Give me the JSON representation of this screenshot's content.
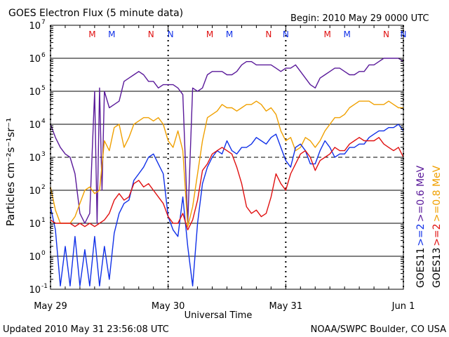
{
  "title": "GOES Electron Flux (5 minute data)",
  "begin_label": "Begin: 2010 May 29 0000 UTC",
  "updated_label": "Updated 2010 May 31 23:56:08 UTC",
  "credit": "NOAA/SWPC Boulder, CO USA",
  "colors": {
    "purple": "#5a1a9a",
    "orange": "#f0a000",
    "blue": "#1030e8",
    "red": "#e01010",
    "axis": "#000000",
    "marker_red": "#e01010",
    "marker_blue": "#1030e8"
  },
  "chart_data": {
    "type": "line",
    "title": "GOES Electron Flux (5 minute data)",
    "xlabel": "Universal Time",
    "ylabel": "Particles cm⁻²s⁻¹sr⁻¹",
    "xlim": [
      0,
      72
    ],
    "ylim_log10": [
      -1,
      7
    ],
    "x_ticks": [
      {
        "x": 0,
        "label": "May 29"
      },
      {
        "x": 24,
        "label": "May 30"
      },
      {
        "x": 48,
        "label": "May 31"
      },
      {
        "x": 72,
        "label": "Jun 1"
      }
    ],
    "y_ticks": [
      {
        "exp": 7,
        "label": "7"
      },
      {
        "exp": 6,
        "label": "6"
      },
      {
        "exp": 5,
        "label": "5"
      },
      {
        "exp": 4,
        "label": "4"
      },
      {
        "exp": 3,
        "label": "3"
      },
      {
        "exp": 2,
        "label": "2"
      },
      {
        "exp": 1,
        "label": "1"
      },
      {
        "exp": 0,
        "label": "0"
      },
      {
        "exp": -1,
        "label": "-1"
      }
    ],
    "threshold_lines_log10": [
      6,
      5,
      4,
      2,
      1,
      0
    ],
    "dashed_threshold_log10": 3,
    "day_markers_x": [
      0,
      24,
      48,
      72
    ],
    "mn_markers": [
      {
        "x": 8.5,
        "label": "M",
        "color": "red"
      },
      {
        "x": 12.5,
        "label": "M",
        "color": "blue"
      },
      {
        "x": 20.5,
        "label": "N",
        "color": "red"
      },
      {
        "x": 24.5,
        "label": "N",
        "color": "blue"
      },
      {
        "x": 32.5,
        "label": "M",
        "color": "red"
      },
      {
        "x": 36.5,
        "label": "M",
        "color": "blue"
      },
      {
        "x": 44.5,
        "label": "N",
        "color": "red"
      },
      {
        "x": 48.0,
        "label": "N",
        "color": "blue"
      },
      {
        "x": 56.5,
        "label": "M",
        "color": "red"
      },
      {
        "x": 60.5,
        "label": "M",
        "color": "blue"
      },
      {
        "x": 68.5,
        "label": "N",
        "color": "red"
      },
      {
        "x": 72.0,
        "label": "N",
        "color": "blue"
      }
    ],
    "right_labels": [
      {
        "text": ">=0.6 MeV",
        "color": "purple",
        "col": 1
      },
      {
        "text": ">=2",
        "color": "blue",
        "col": 1
      },
      {
        "text": "GOES11",
        "color": "axis",
        "col": 1
      },
      {
        "text": ">=0.8 MeV",
        "color": "orange",
        "col": 2
      },
      {
        "text": ">=2",
        "color": "red",
        "col": 2
      },
      {
        "text": "GOES13",
        "color": "axis",
        "col": 2
      }
    ],
    "series": [
      {
        "name": "GOES11 >=0.6 MeV",
        "color": "purple",
        "x": [
          0,
          1,
          2,
          3,
          4,
          5,
          6,
          7,
          8,
          9,
          9.5,
          10,
          10.5,
          11,
          12,
          13,
          14,
          15,
          16,
          17,
          18,
          19,
          20,
          21,
          22,
          23,
          24,
          25,
          26,
          27,
          28,
          29,
          30,
          31,
          32,
          33,
          34,
          35,
          36,
          37,
          38,
          39,
          40,
          41,
          42,
          43,
          44,
          45,
          46,
          47,
          48,
          49,
          50,
          51,
          52,
          53,
          54,
          55,
          56,
          57,
          58,
          59,
          60,
          61,
          62,
          63,
          64,
          65,
          66,
          67,
          68,
          69,
          70,
          71,
          72
        ],
        "log10": [
          4.0,
          3.6,
          3.3,
          3.1,
          3.0,
          2.5,
          1.3,
          1.0,
          1.3,
          5.0,
          1.0,
          5.1,
          2.0,
          5.0,
          4.5,
          4.6,
          4.7,
          5.3,
          5.4,
          5.5,
          5.6,
          5.5,
          5.3,
          5.3,
          5.1,
          5.2,
          5.2,
          5.2,
          5.1,
          4.9,
          1.0,
          5.1,
          5.0,
          5.1,
          5.5,
          5.6,
          5.6,
          5.6,
          5.5,
          5.5,
          5.6,
          5.8,
          5.9,
          5.9,
          5.8,
          5.8,
          5.8,
          5.8,
          5.7,
          5.6,
          5.7,
          5.7,
          5.8,
          5.6,
          5.4,
          5.2,
          5.1,
          5.4,
          5.5,
          5.6,
          5.7,
          5.7,
          5.6,
          5.5,
          5.5,
          5.6,
          5.6,
          5.8,
          5.8,
          5.9,
          6.0,
          6.0,
          6.0,
          6.0,
          5.9
        ]
      },
      {
        "name": "GOES13 >=0.8 MeV",
        "color": "orange",
        "x": [
          0,
          1,
          2,
          3,
          4,
          5,
          6,
          7,
          8,
          9,
          10,
          11,
          12,
          13,
          14,
          15,
          16,
          17,
          18,
          19,
          20,
          21,
          22,
          23,
          24,
          25,
          26,
          27,
          28,
          29,
          30,
          31,
          32,
          33,
          34,
          35,
          36,
          37,
          38,
          39,
          40,
          41,
          42,
          43,
          44,
          45,
          46,
          47,
          48,
          49,
          50,
          51,
          52,
          53,
          54,
          55,
          56,
          57,
          58,
          59,
          60,
          61,
          62,
          63,
          64,
          65,
          66,
          67,
          68,
          69,
          70,
          71,
          72
        ],
        "log10": [
          2.1,
          1.4,
          1.0,
          1.0,
          1.0,
          1.2,
          1.6,
          2.0,
          2.1,
          1.9,
          2.0,
          3.5,
          3.2,
          3.9,
          4.0,
          3.3,
          3.6,
          4.0,
          4.1,
          4.2,
          4.2,
          4.1,
          4.2,
          4.0,
          3.5,
          3.3,
          3.8,
          3.2,
          0.9,
          1.5,
          2.5,
          3.5,
          4.2,
          4.3,
          4.4,
          4.6,
          4.5,
          4.5,
          4.4,
          4.5,
          4.6,
          4.6,
          4.7,
          4.6,
          4.4,
          4.5,
          4.3,
          3.8,
          3.5,
          3.6,
          3.2,
          3.3,
          3.6,
          3.5,
          3.3,
          3.5,
          3.8,
          4.0,
          4.2,
          4.2,
          4.3,
          4.5,
          4.6,
          4.7,
          4.7,
          4.7,
          4.6,
          4.6,
          4.6,
          4.7,
          4.6,
          4.5,
          4.5
        ]
      },
      {
        "name": "GOES11 >=2 MeV",
        "color": "blue",
        "x": [
          0,
          1,
          2,
          3,
          4,
          5,
          6,
          7,
          8,
          9,
          10,
          11,
          12,
          13,
          14,
          15,
          16,
          17,
          18,
          19,
          20,
          21,
          22,
          23,
          24,
          25,
          26,
          27,
          28,
          29,
          30,
          31,
          32,
          33,
          34,
          35,
          36,
          37,
          38,
          39,
          40,
          41,
          42,
          43,
          44,
          45,
          46,
          47,
          48,
          49,
          50,
          51,
          52,
          53,
          54,
          55,
          56,
          57,
          58,
          59,
          60,
          61,
          62,
          63,
          64,
          65,
          66,
          67,
          68,
          69,
          70,
          71,
          72
        ],
        "log10": [
          1.5,
          0.8,
          -0.9,
          0.3,
          -0.9,
          0.6,
          -0.9,
          0.2,
          -0.9,
          0.6,
          -0.9,
          0.3,
          -0.7,
          0.7,
          1.3,
          1.6,
          1.7,
          2.3,
          2.5,
          2.7,
          3.0,
          3.1,
          2.8,
          2.5,
          1.2,
          0.8,
          0.6,
          1.8,
          0.3,
          -0.9,
          1.0,
          2.2,
          2.7,
          3.0,
          3.2,
          3.1,
          3.5,
          3.2,
          3.1,
          3.3,
          3.3,
          3.4,
          3.6,
          3.5,
          3.4,
          3.6,
          3.7,
          3.3,
          2.9,
          2.7,
          3.3,
          3.4,
          3.2,
          2.8,
          2.8,
          3.2,
          3.5,
          3.3,
          3.0,
          3.1,
          3.1,
          3.3,
          3.3,
          3.4,
          3.4,
          3.6,
          3.7,
          3.8,
          3.8,
          3.9,
          3.9,
          4.0,
          3.8
        ]
      },
      {
        "name": "GOES13 >=2 MeV",
        "color": "red",
        "x": [
          0,
          1,
          2,
          3,
          4,
          5,
          6,
          7,
          8,
          9,
          10,
          11,
          12,
          13,
          14,
          15,
          16,
          17,
          18,
          19,
          20,
          21,
          22,
          23,
          24,
          25,
          26,
          27,
          28,
          29,
          30,
          31,
          32,
          33,
          34,
          35,
          36,
          37,
          38,
          39,
          40,
          41,
          42,
          43,
          44,
          45,
          46,
          47,
          48,
          49,
          50,
          51,
          52,
          53,
          54,
          55,
          56,
          57,
          58,
          59,
          60,
          61,
          62,
          63,
          64,
          65,
          66,
          67,
          68,
          69,
          70,
          71,
          72
        ],
        "log10": [
          1.1,
          1.0,
          1.0,
          1.0,
          1.0,
          0.9,
          1.0,
          0.9,
          1.0,
          0.9,
          1.0,
          1.1,
          1.3,
          1.7,
          1.9,
          1.7,
          1.8,
          2.2,
          2.3,
          2.1,
          2.2,
          2.0,
          1.8,
          1.6,
          1.2,
          1.0,
          1.0,
          1.3,
          0.8,
          1.1,
          1.7,
          2.6,
          2.8,
          3.1,
          3.2,
          3.3,
          3.2,
          3.1,
          2.7,
          2.2,
          1.5,
          1.3,
          1.4,
          1.2,
          1.3,
          1.8,
          2.5,
          2.2,
          2.0,
          2.5,
          2.8,
          3.1,
          3.2,
          3.0,
          2.6,
          2.9,
          3.0,
          3.1,
          3.3,
          3.2,
          3.2,
          3.4,
          3.5,
          3.6,
          3.5,
          3.5,
          3.5,
          3.6,
          3.4,
          3.3,
          3.2,
          3.3,
          3.0
        ]
      }
    ]
  }
}
